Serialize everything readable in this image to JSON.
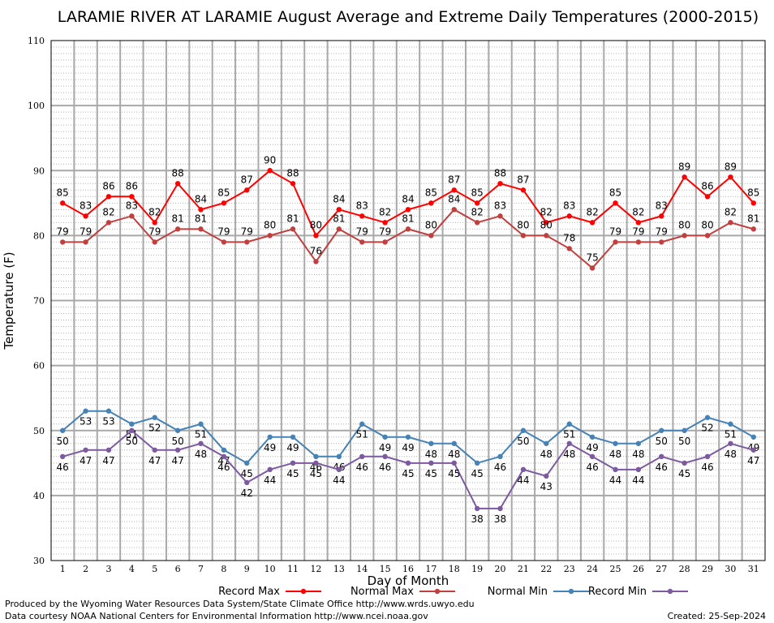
{
  "chart_data": {
    "type": "line",
    "title": "LARAMIE RIVER AT LARAMIE August Average and Extreme Daily Temperatures (2000-2015)",
    "xlabel": "Day of Month",
    "ylabel": "Temperature (F)",
    "ylim": [
      30,
      110
    ],
    "xlim": [
      0.5,
      31.5
    ],
    "yticks": [
      "30",
      "40",
      "50",
      "60",
      "70",
      "80",
      "90",
      "100",
      "110"
    ],
    "categories": [
      "1",
      "2",
      "3",
      "4",
      "5",
      "6",
      "7",
      "8",
      "9",
      "10",
      "11",
      "12",
      "13",
      "14",
      "15",
      "16",
      "17",
      "18",
      "19",
      "20",
      "21",
      "22",
      "23",
      "24",
      "25",
      "26",
      "27",
      "28",
      "29",
      "30",
      "31"
    ],
    "grid": true,
    "legend_position": "bottom",
    "series": [
      {
        "name": "Record Max",
        "color": "#ff0000",
        "values": [
          85,
          83,
          86,
          86,
          82,
          88,
          84,
          85,
          87,
          90,
          88,
          80,
          84,
          83,
          82,
          84,
          85,
          87,
          85,
          88,
          87,
          82,
          83,
          82,
          85,
          82,
          83,
          89,
          86,
          89,
          85
        ]
      },
      {
        "name": "Normal Max",
        "color": "#c04040",
        "values": [
          79,
          79,
          82,
          83,
          79,
          81,
          81,
          79,
          79,
          80,
          81,
          76,
          81,
          79,
          79,
          81,
          80,
          84,
          82,
          83,
          80,
          80,
          78,
          75,
          79,
          79,
          79,
          80,
          80,
          82,
          81
        ]
      },
      {
        "name": "Normal Min",
        "color": "#4682b4",
        "values": [
          50,
          53,
          53,
          51,
          52,
          50,
          51,
          47,
          45,
          49,
          49,
          46,
          46,
          51,
          49,
          49,
          48,
          48,
          45,
          46,
          50,
          48,
          51,
          49,
          48,
          48,
          50,
          50,
          52,
          51,
          49
        ]
      },
      {
        "name": "Record Min",
        "color": "#7d5aa0",
        "values": [
          46,
          47,
          47,
          50,
          47,
          47,
          48,
          46,
          42,
          44,
          45,
          45,
          44,
          46,
          46,
          45,
          45,
          45,
          38,
          38,
          44,
          43,
          48,
          46,
          44,
          44,
          46,
          45,
          46,
          48,
          47
        ]
      }
    ]
  },
  "footer": {
    "produced_by": "Produced by the Wyoming Water Resources Data System/State Climate Office http://www.wrds.uwyo.edu",
    "courtesy": "Data courtesy NOAA National Centers for Environmental Information http://www.ncei.noaa.gov",
    "created": "Created:  25-Sep-2024"
  }
}
